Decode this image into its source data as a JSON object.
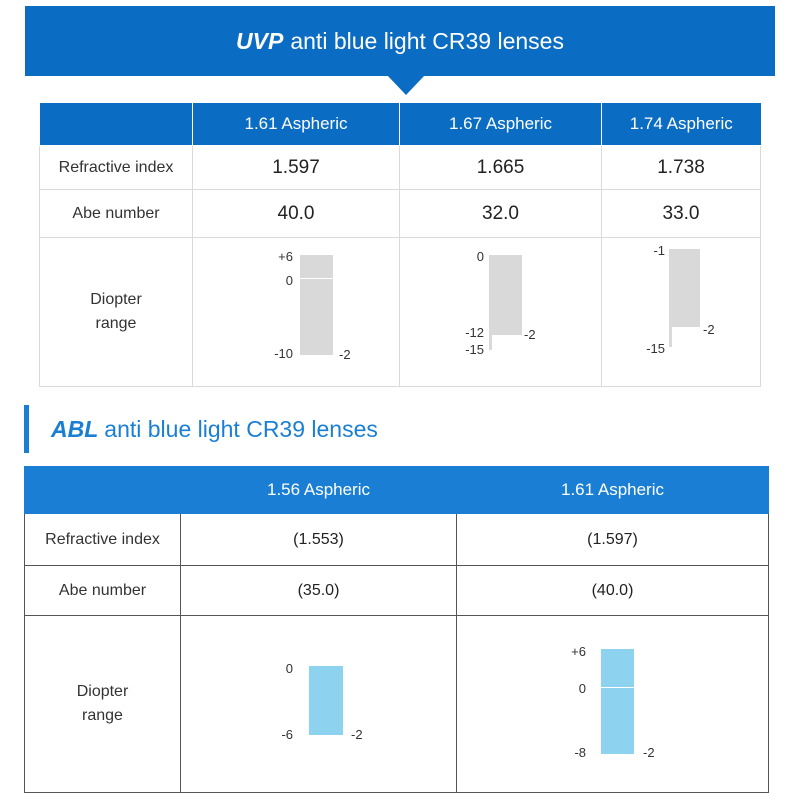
{
  "uvp": {
    "brand": "UVP",
    "title": "anti blue light CR39 lenses",
    "headers": [
      "",
      "1.61 Aspheric",
      "1.67 Aspheric",
      "1.74 Aspheric"
    ],
    "row_labels": {
      "refractive": "Refractive index",
      "abbe": "Abe number",
      "diopter_1": "Diopter",
      "diopter_2": "range"
    },
    "refractive": [
      "1.597",
      "1.665",
      "1.738"
    ],
    "abbe": [
      "40.0",
      "32.0",
      "33.0"
    ],
    "diopter": [
      {
        "top": "+6",
        "zero": "0",
        "bottom": "-10",
        "cyl": "-2",
        "range": [
          6,
          -10
        ],
        "cyl_value": -2
      },
      {
        "top": "0",
        "mid": "-12",
        "bottom": "-15",
        "cyl": "-2",
        "range": [
          0,
          -15
        ],
        "cyl_value": -2,
        "cyl_limit": -12
      },
      {
        "top": "-1",
        "bottom": "-15",
        "cyl": "-2",
        "range": [
          -1,
          -15
        ],
        "cyl_value": -2,
        "cyl_limit": -13
      }
    ],
    "bar_color": "#d9d9d9"
  },
  "abl": {
    "brand": "ABL",
    "title": "anti blue light CR39 lenses",
    "headers": [
      "",
      "1.56 Aspheric",
      "1.61 Aspheric"
    ],
    "row_labels": {
      "refractive": "Refractive index",
      "abbe": "Abe number",
      "diopter_1": "Diopter",
      "diopter_2": "range"
    },
    "refractive": [
      "(1.553)",
      "(1.597)"
    ],
    "abbe": [
      "(35.0)",
      "(40.0)"
    ],
    "diopter": [
      {
        "top": "0",
        "bottom": "-6",
        "cyl": "-2",
        "range": [
          0,
          -6
        ],
        "cyl_value": -2
      },
      {
        "top": "+6",
        "zero": "0",
        "bottom": "-8",
        "cyl": "-2",
        "range": [
          6,
          -8
        ],
        "cyl_value": -2
      }
    ],
    "bar_color": "#8dd2ee"
  },
  "colors": {
    "primary": "#0a6cc2",
    "secondary": "#1a7fd4"
  }
}
